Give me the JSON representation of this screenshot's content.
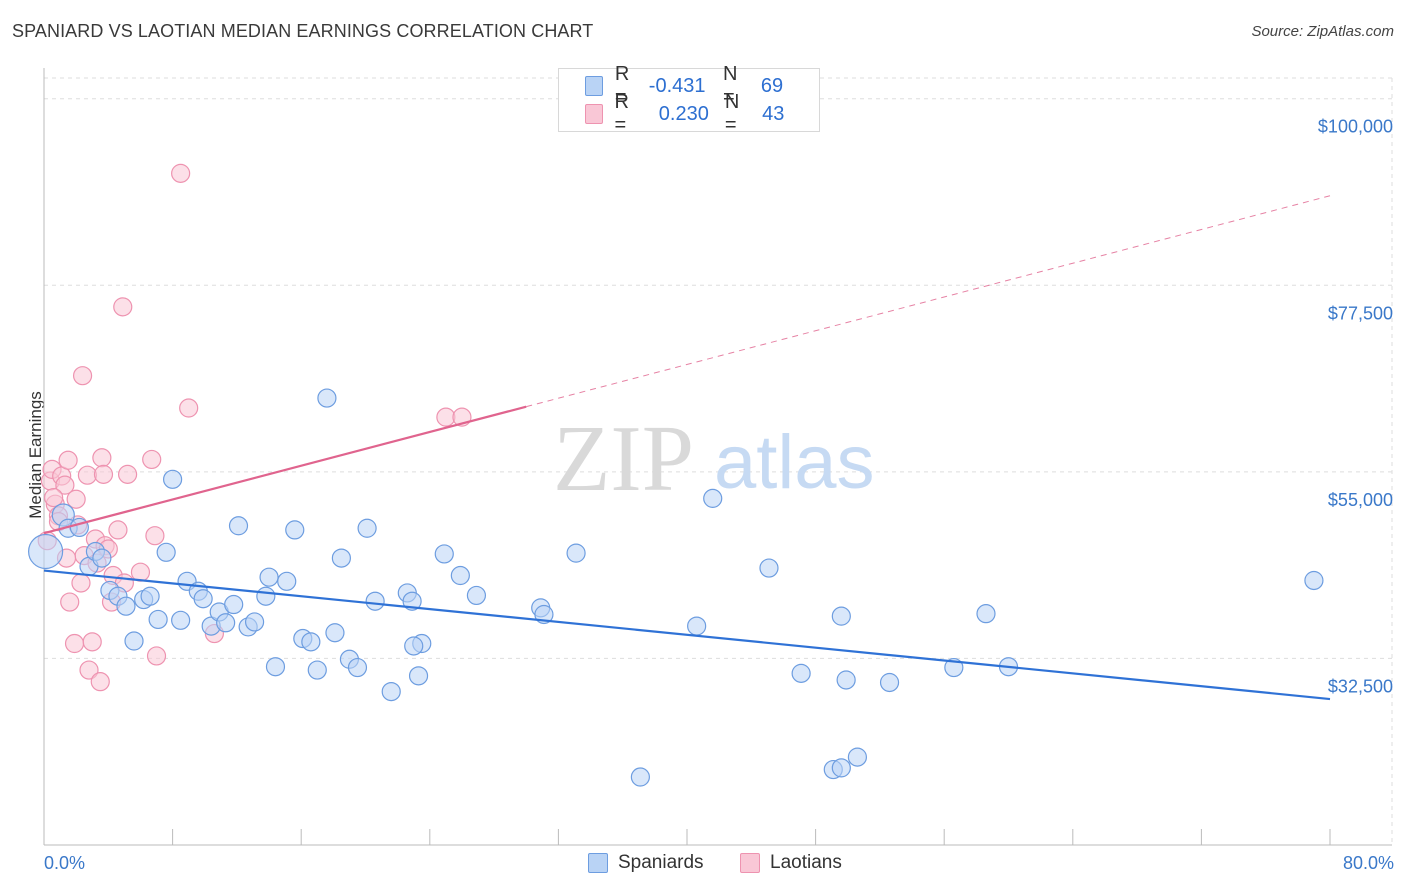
{
  "title": "SPANIARD VS LAOTIAN MEDIAN EARNINGS CORRELATION CHART",
  "source": "Source: ZipAtlas.com",
  "watermark": {
    "zip": "ZIP",
    "atlas": "atlas"
  },
  "colors": {
    "blue": "#2f72d6",
    "blue_fill": "#b9d3f5",
    "blue_stroke": "#6d9de0",
    "pink": "#e0648e",
    "pink_fill": "#f9c7d6",
    "pink_stroke": "#ee93b0",
    "tick_text": "#3a78c9",
    "grid": "#dddddd"
  },
  "legend": {
    "rows": [
      {
        "r_label": "R =",
        "r_value": "-0.431",
        "n_label": "N =",
        "n_value": "69"
      },
      {
        "r_label": "R =",
        "r_value": "0.230",
        "n_label": "N =",
        "n_value": "43"
      }
    ]
  },
  "bottom_legend": {
    "series1": "Spaniards",
    "series2": "Laotians"
  },
  "chart_data": {
    "type": "scatter",
    "title": "SPANIARD VS LAOTIAN MEDIAN EARNINGS CORRELATION CHART",
    "xlabel": "",
    "ylabel": "Median Earnings",
    "xlim": [
      0,
      80
    ],
    "ylim": [
      10000,
      102500
    ],
    "x_tick_labels": [
      "0.0%",
      "80.0%"
    ],
    "y_ticks": [
      {
        "value": 32500,
        "label": "$32,500"
      },
      {
        "value": 55000,
        "label": "$55,000"
      },
      {
        "value": 77500,
        "label": "$77,500"
      },
      {
        "value": 100000,
        "label": "$100,000"
      }
    ],
    "grid": true,
    "series": [
      {
        "name": "Spaniards",
        "color": "#2f72d6",
        "R": -0.431,
        "N": 69,
        "trend": {
          "x": [
            0,
            80
          ],
          "y": [
            43100,
            27600
          ],
          "dashed_from": null
        },
        "points": [
          [
            0.1,
            45400
          ],
          [
            1.2,
            49800
          ],
          [
            1.5,
            48200
          ],
          [
            2.2,
            48300
          ],
          [
            2.8,
            43600
          ],
          [
            3.2,
            45400
          ],
          [
            3.6,
            44600
          ],
          [
            4.1,
            40700
          ],
          [
            4.6,
            40000
          ],
          [
            5.1,
            38800
          ],
          [
            5.6,
            34600
          ],
          [
            6.2,
            39600
          ],
          [
            6.6,
            40000
          ],
          [
            7.1,
            37200
          ],
          [
            7.6,
            45300
          ],
          [
            8.0,
            54100
          ],
          [
            8.5,
            37100
          ],
          [
            8.9,
            41800
          ],
          [
            9.6,
            40600
          ],
          [
            9.9,
            39700
          ],
          [
            10.4,
            36400
          ],
          [
            10.9,
            38100
          ],
          [
            11.3,
            36800
          ],
          [
            11.8,
            39000
          ],
          [
            12.1,
            48500
          ],
          [
            12.7,
            36300
          ],
          [
            13.1,
            36900
          ],
          [
            13.8,
            40000
          ],
          [
            14.0,
            42300
          ],
          [
            14.4,
            31500
          ],
          [
            15.1,
            41800
          ],
          [
            15.6,
            48000
          ],
          [
            16.1,
            34900
          ],
          [
            16.6,
            34500
          ],
          [
            17.0,
            31100
          ],
          [
            17.6,
            63900
          ],
          [
            18.1,
            35600
          ],
          [
            18.5,
            44600
          ],
          [
            19.0,
            32400
          ],
          [
            19.5,
            31400
          ],
          [
            20.1,
            48200
          ],
          [
            20.6,
            39400
          ],
          [
            21.6,
            28500
          ],
          [
            22.6,
            40400
          ],
          [
            22.9,
            39400
          ],
          [
            23.5,
            34300
          ],
          [
            23.3,
            30400
          ],
          [
            24.9,
            45100
          ],
          [
            25.9,
            42500
          ],
          [
            26.9,
            40100
          ],
          [
            30.9,
            38600
          ],
          [
            31.1,
            37800
          ],
          [
            33.1,
            45200
          ],
          [
            37.1,
            18200
          ],
          [
            40.6,
            36400
          ],
          [
            41.6,
            51800
          ],
          [
            45.1,
            43400
          ],
          [
            47.1,
            30700
          ],
          [
            49.1,
            19100
          ],
          [
            49.6,
            19300
          ],
          [
            49.6,
            37600
          ],
          [
            49.9,
            29900
          ],
          [
            50.6,
            20600
          ],
          [
            52.6,
            29600
          ],
          [
            56.6,
            31400
          ],
          [
            58.6,
            37900
          ],
          [
            60.0,
            31500
          ],
          [
            79.0,
            41900
          ],
          [
            23.0,
            34000
          ]
        ]
      },
      {
        "name": "Laotians",
        "color": "#e0648e",
        "R": 0.23,
        "N": 43,
        "trend": {
          "x": [
            0,
            80
          ],
          "y": [
            47600,
            88300
          ],
          "dashed_from": 30
        },
        "points": [
          [
            0.2,
            46700
          ],
          [
            0.4,
            53900
          ],
          [
            0.5,
            55300
          ],
          [
            0.7,
            51100
          ],
          [
            0.9,
            49700
          ],
          [
            1.1,
            54500
          ],
          [
            1.3,
            53400
          ],
          [
            1.5,
            56400
          ],
          [
            1.6,
            39300
          ],
          [
            1.9,
            34300
          ],
          [
            2.0,
            51700
          ],
          [
            2.1,
            48600
          ],
          [
            2.3,
            41600
          ],
          [
            2.5,
            44900
          ],
          [
            2.7,
            54600
          ],
          [
            2.8,
            31100
          ],
          [
            3.0,
            34500
          ],
          [
            3.2,
            46900
          ],
          [
            3.5,
            29700
          ],
          [
            3.6,
            56700
          ],
          [
            3.7,
            54700
          ],
          [
            3.8,
            46100
          ],
          [
            4.2,
            39300
          ],
          [
            4.3,
            42500
          ],
          [
            4.6,
            48000
          ],
          [
            4.9,
            74900
          ],
          [
            5.0,
            41600
          ],
          [
            5.2,
            54700
          ],
          [
            6.0,
            42900
          ],
          [
            6.7,
            56500
          ],
          [
            6.9,
            47300
          ],
          [
            7.0,
            32800
          ],
          [
            2.4,
            66600
          ],
          [
            8.5,
            91000
          ],
          [
            9.0,
            62700
          ],
          [
            10.6,
            35500
          ],
          [
            25.0,
            61600
          ],
          [
            26.0,
            61600
          ],
          [
            0.9,
            49000
          ],
          [
            1.4,
            44600
          ],
          [
            0.6,
            51900
          ],
          [
            4.0,
            45700
          ],
          [
            3.3,
            44000
          ]
        ]
      }
    ]
  }
}
